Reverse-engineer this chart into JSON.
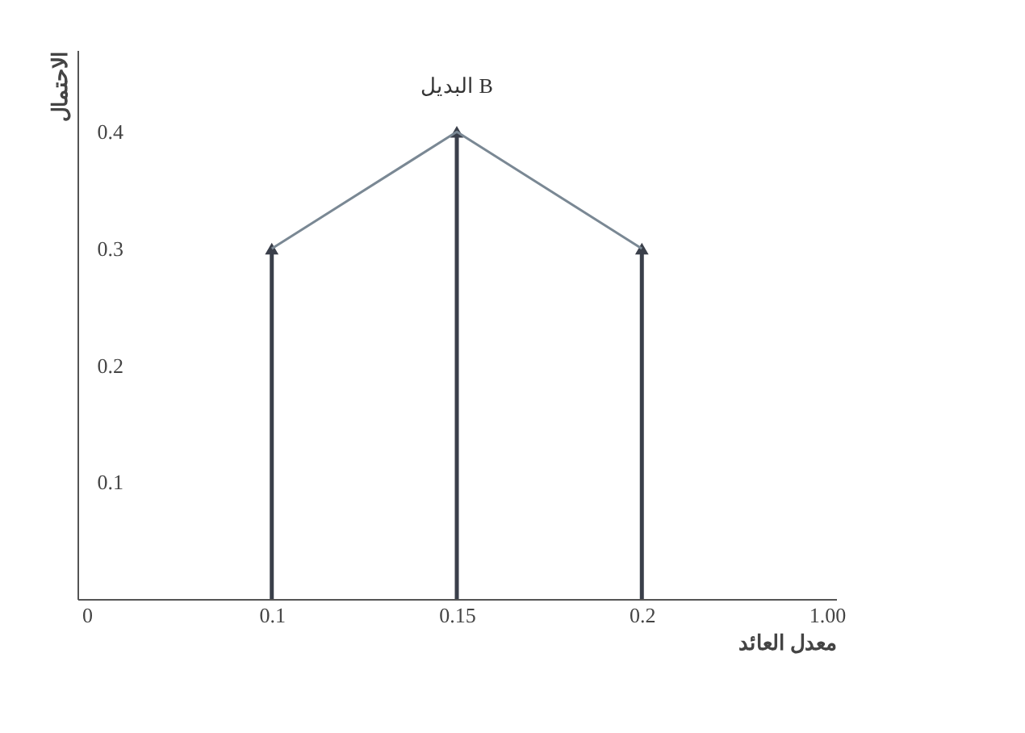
{
  "chart_data": {
    "type": "lollipop",
    "xlabel": "معدل العائد",
    "ylabel": "الاحتمال",
    "categories": [
      "0",
      "0.1",
      "0.15",
      "0.2",
      "1.00"
    ],
    "series": [
      {
        "type": "lollipop",
        "color": "#3a3f4a",
        "marker": "triangle",
        "values": [
          null,
          0.3,
          0.4,
          0.3,
          null
        ]
      },
      {
        "type": "line",
        "color": "#7a8894",
        "marker": "none",
        "values": [
          null,
          0.3,
          0.4,
          0.3,
          null
        ]
      }
    ],
    "ylim": [
      0,
      0.47
    ],
    "yticks": [
      0.1,
      0.2,
      0.3,
      0.4
    ],
    "annotations": [
      {
        "text": "البديل B",
        "x": "0.15",
        "y": 0.4
      }
    ]
  }
}
